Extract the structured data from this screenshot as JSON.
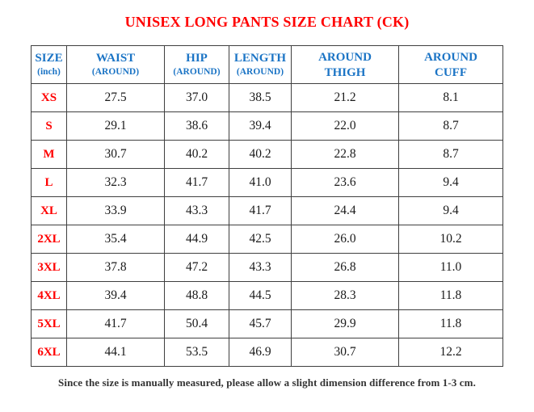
{
  "title": "UNISEX LONG PANTS SIZE CHART (CK)",
  "note": "Since the size is manually measured, please allow a slight dimension difference from 1-3 cm.",
  "colors": {
    "title_red": "#FF0000",
    "size_label_red": "#FF0000",
    "header_blue": "#1B74C5",
    "value_black": "#1A1A1A",
    "border_gray": "#3F3F3F",
    "note_gray": "#333333"
  },
  "table": {
    "columns": [
      {
        "line1": "SIZE",
        "line2": "(inch)",
        "small_line2": true,
        "width": 44
      },
      {
        "line1": "WAIST",
        "line2": "(AROUND)",
        "small_line2": true,
        "width": 121
      },
      {
        "line1": "HIP",
        "line2": "(AROUND)",
        "small_line2": true,
        "width": 80
      },
      {
        "line1": "LENGTH",
        "line2": "(AROUND)",
        "small_line2": true,
        "width": 77
      },
      {
        "line1": "AROUND",
        "line2": "THIGH",
        "small_line2": false,
        "width": 133
      },
      {
        "line1": "AROUND",
        "line2": "CUFF",
        "small_line2": false,
        "width": 129
      }
    ],
    "rows": [
      {
        "size": "XS",
        "values": [
          "27.5",
          "37.0",
          "38.5",
          "21.2",
          "8.1"
        ]
      },
      {
        "size": "S",
        "values": [
          "29.1",
          "38.6",
          "39.4",
          "22.0",
          "8.7"
        ]
      },
      {
        "size": "M",
        "values": [
          "30.7",
          "40.2",
          "40.2",
          "22.8",
          "8.7"
        ]
      },
      {
        "size": "L",
        "values": [
          "32.3",
          "41.7",
          "41.0",
          "23.6",
          "9.4"
        ]
      },
      {
        "size": "XL",
        "values": [
          "33.9",
          "43.3",
          "41.7",
          "24.4",
          "9.4"
        ]
      },
      {
        "size": "2XL",
        "values": [
          "35.4",
          "44.9",
          "42.5",
          "26.0",
          "10.2"
        ]
      },
      {
        "size": "3XL",
        "values": [
          "37.8",
          "47.2",
          "43.3",
          "26.8",
          "11.0"
        ]
      },
      {
        "size": "4XL",
        "values": [
          "39.4",
          "48.8",
          "44.5",
          "28.3",
          "11.8"
        ]
      },
      {
        "size": "5XL",
        "values": [
          "41.7",
          "50.4",
          "45.7",
          "29.9",
          "11.8"
        ]
      },
      {
        "size": "6XL",
        "values": [
          "44.1",
          "53.5",
          "46.9",
          "30.7",
          "12.2"
        ]
      }
    ]
  }
}
